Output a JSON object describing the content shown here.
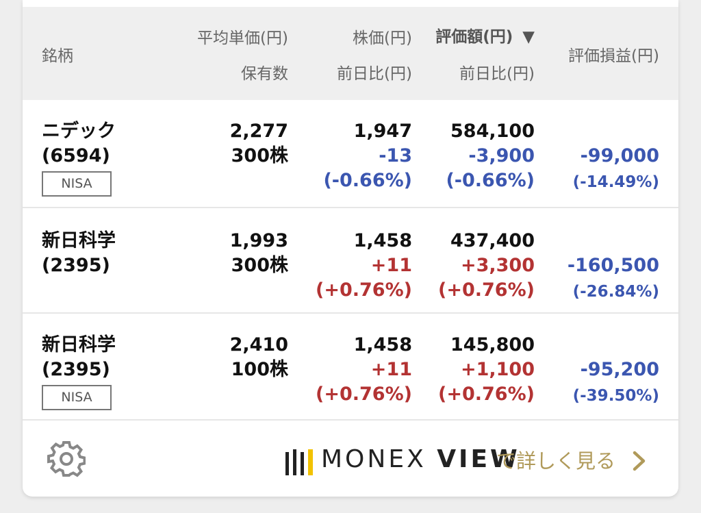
{
  "header": {
    "col_name": "銘柄",
    "col_avg_price": "平均単価(円)",
    "col_quantity": "保有数",
    "col_price": "株価(円)",
    "col_price_change": "前日比(円)",
    "col_value": "評価額(円)",
    "sort_indicator": "▼",
    "col_value_change": "前日比(円)",
    "col_pnl": "評価損益(円)"
  },
  "rows": [
    {
      "name": "ニデック",
      "code": "(6594)",
      "badge": "NISA",
      "avg_price": "2,277",
      "quantity": "300株",
      "price": "1,947",
      "price_change": "-13",
      "price_change_pct": "(-0.66%)",
      "value": "584,100",
      "value_change": "-3,900",
      "value_change_pct": "(-0.66%)",
      "pnl": "-99,000",
      "pnl_pct": "(-14.49%)"
    },
    {
      "name": "新日科学",
      "code": "(2395)",
      "badge": "",
      "avg_price": "1,993",
      "quantity": "300株",
      "price": "1,458",
      "price_change": "+11",
      "price_change_pct": "(+0.76%)",
      "value": "437,400",
      "value_change": "+3,300",
      "value_change_pct": "(+0.76%)",
      "pnl": "-160,500",
      "pnl_pct": "(-26.84%)"
    },
    {
      "name": "新日科学",
      "code": "(2395)",
      "badge": "NISA",
      "avg_price": "2,410",
      "quantity": "100株",
      "price": "1,458",
      "price_change": "+11",
      "price_change_pct": "(+0.76%)",
      "value": "145,800",
      "value_change": "+1,100",
      "value_change_pct": "(+0.76%)",
      "pnl": "-95,200",
      "pnl_pct": "(-39.50%)"
    }
  ],
  "footer": {
    "settings_icon": "gear-icon",
    "logo_part1": "MONEX",
    "logo_part2": "VIEW",
    "more_link": "で詳しく見る",
    "chevron_icon": "chevron-right-icon"
  },
  "colors": {
    "negative": "#3b56b0",
    "positive": "#b33333",
    "link": "#b09a5a",
    "logo_accent": "#f2c200"
  }
}
